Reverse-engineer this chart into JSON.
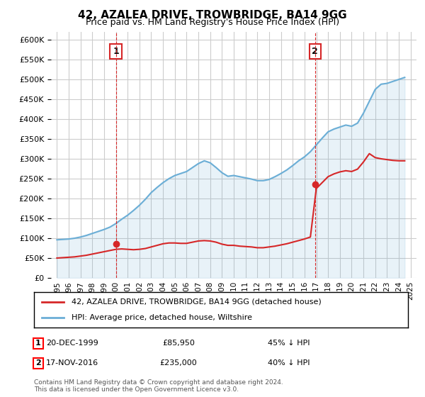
{
  "title": "42, AZALEA DRIVE, TROWBRIDGE, BA14 9GG",
  "subtitle": "Price paid vs. HM Land Registry's House Price Index (HPI)",
  "legend_line1": "42, AZALEA DRIVE, TROWBRIDGE, BA14 9GG (detached house)",
  "legend_line2": "HPI: Average price, detached house, Wiltshire",
  "footnote": "Contains HM Land Registry data © Crown copyright and database right 2024.\nThis data is licensed under the Open Government Licence v3.0.",
  "purchase1_date": "20-DEC-1999",
  "purchase1_price": 85950,
  "purchase1_label": "45% ↓ HPI",
  "purchase2_date": "17-NOV-2016",
  "purchase2_price": 235000,
  "purchase2_label": "40% ↓ HPI",
  "ylim": [
    0,
    620000
  ],
  "yticks": [
    0,
    50000,
    100000,
    150000,
    200000,
    250000,
    300000,
    350000,
    400000,
    450000,
    500000,
    550000,
    600000
  ],
  "line_color_hpi": "#6baed6",
  "line_color_price": "#d62728",
  "vline_color": "#d62728",
  "marker_color": "#d62728",
  "background_color": "#ffffff",
  "grid_color": "#cccccc",
  "hpi_x": [
    1995,
    1995.5,
    1996,
    1996.5,
    1997,
    1997.5,
    1998,
    1998.5,
    1999,
    1999.5,
    2000,
    2000.5,
    2001,
    2001.5,
    2002,
    2002.5,
    2003,
    2003.5,
    2004,
    2004.5,
    2005,
    2005.5,
    2006,
    2006.5,
    2007,
    2007.5,
    2008,
    2008.5,
    2009,
    2009.5,
    2010,
    2010.5,
    2011,
    2011.5,
    2012,
    2012.5,
    2013,
    2013.5,
    2014,
    2014.5,
    2015,
    2015.5,
    2016,
    2016.5,
    2017,
    2017.5,
    2018,
    2018.5,
    2019,
    2019.5,
    2020,
    2020.5,
    2021,
    2021.5,
    2022,
    2022.5,
    2023,
    2023.5,
    2024,
    2024.5
  ],
  "hpi_y": [
    96000,
    97000,
    98000,
    100000,
    103000,
    107000,
    112000,
    117000,
    122000,
    128000,
    137000,
    148000,
    158000,
    170000,
    183000,
    198000,
    215000,
    228000,
    240000,
    250000,
    258000,
    263000,
    268000,
    278000,
    288000,
    295000,
    290000,
    278000,
    265000,
    256000,
    258000,
    255000,
    252000,
    249000,
    245000,
    245000,
    248000,
    255000,
    263000,
    272000,
    283000,
    295000,
    305000,
    318000,
    335000,
    352000,
    368000,
    375000,
    380000,
    385000,
    382000,
    390000,
    415000,
    445000,
    475000,
    488000,
    490000,
    495000,
    500000,
    505000
  ],
  "price_x": [
    1995,
    1995.5,
    1996,
    1996.5,
    1997,
    1997.5,
    1998,
    1998.5,
    1999,
    1999.5,
    2000,
    2000.5,
    2001,
    2001.5,
    2002,
    2002.5,
    2003,
    2003.5,
    2004,
    2004.5,
    2005,
    2005.5,
    2006,
    2006.5,
    2007,
    2007.5,
    2008,
    2008.5,
    2009,
    2009.5,
    2010,
    2010.5,
    2011,
    2011.5,
    2012,
    2012.5,
    2013,
    2013.5,
    2014,
    2014.5,
    2015,
    2015.5,
    2016,
    2016.5,
    2017,
    2017.5,
    2018,
    2018.5,
    2019,
    2019.5,
    2020,
    2020.5,
    2021,
    2021.5,
    2022,
    2022.5,
    2023,
    2023.5,
    2024,
    2024.5
  ],
  "price_y": [
    50000,
    51000,
    52000,
    53000,
    55000,
    57000,
    60000,
    63000,
    66000,
    69000,
    72000,
    73000,
    72000,
    71000,
    72000,
    74000,
    78000,
    82000,
    86000,
    88000,
    88000,
    87000,
    87000,
    90000,
    93000,
    94000,
    93000,
    90000,
    85000,
    82000,
    82000,
    80000,
    79000,
    78000,
    76000,
    76000,
    78000,
    80000,
    83000,
    86000,
    90000,
    94000,
    98000,
    103000,
    225000,
    240000,
    255000,
    262000,
    267000,
    270000,
    268000,
    274000,
    292000,
    313000,
    303000,
    300000,
    298000,
    296000,
    295000,
    295000
  ],
  "purchase1_x": 2000.0,
  "purchase1_y": 85950,
  "purchase2_x": 2016.9,
  "purchase2_y": 235000,
  "xlim": [
    1994.5,
    2025.5
  ],
  "xticks": [
    1995,
    1996,
    1997,
    1998,
    1999,
    2000,
    2001,
    2002,
    2003,
    2004,
    2005,
    2006,
    2007,
    2008,
    2009,
    2010,
    2011,
    2012,
    2013,
    2014,
    2015,
    2016,
    2017,
    2018,
    2019,
    2020,
    2021,
    2022,
    2023,
    2024,
    2025
  ]
}
